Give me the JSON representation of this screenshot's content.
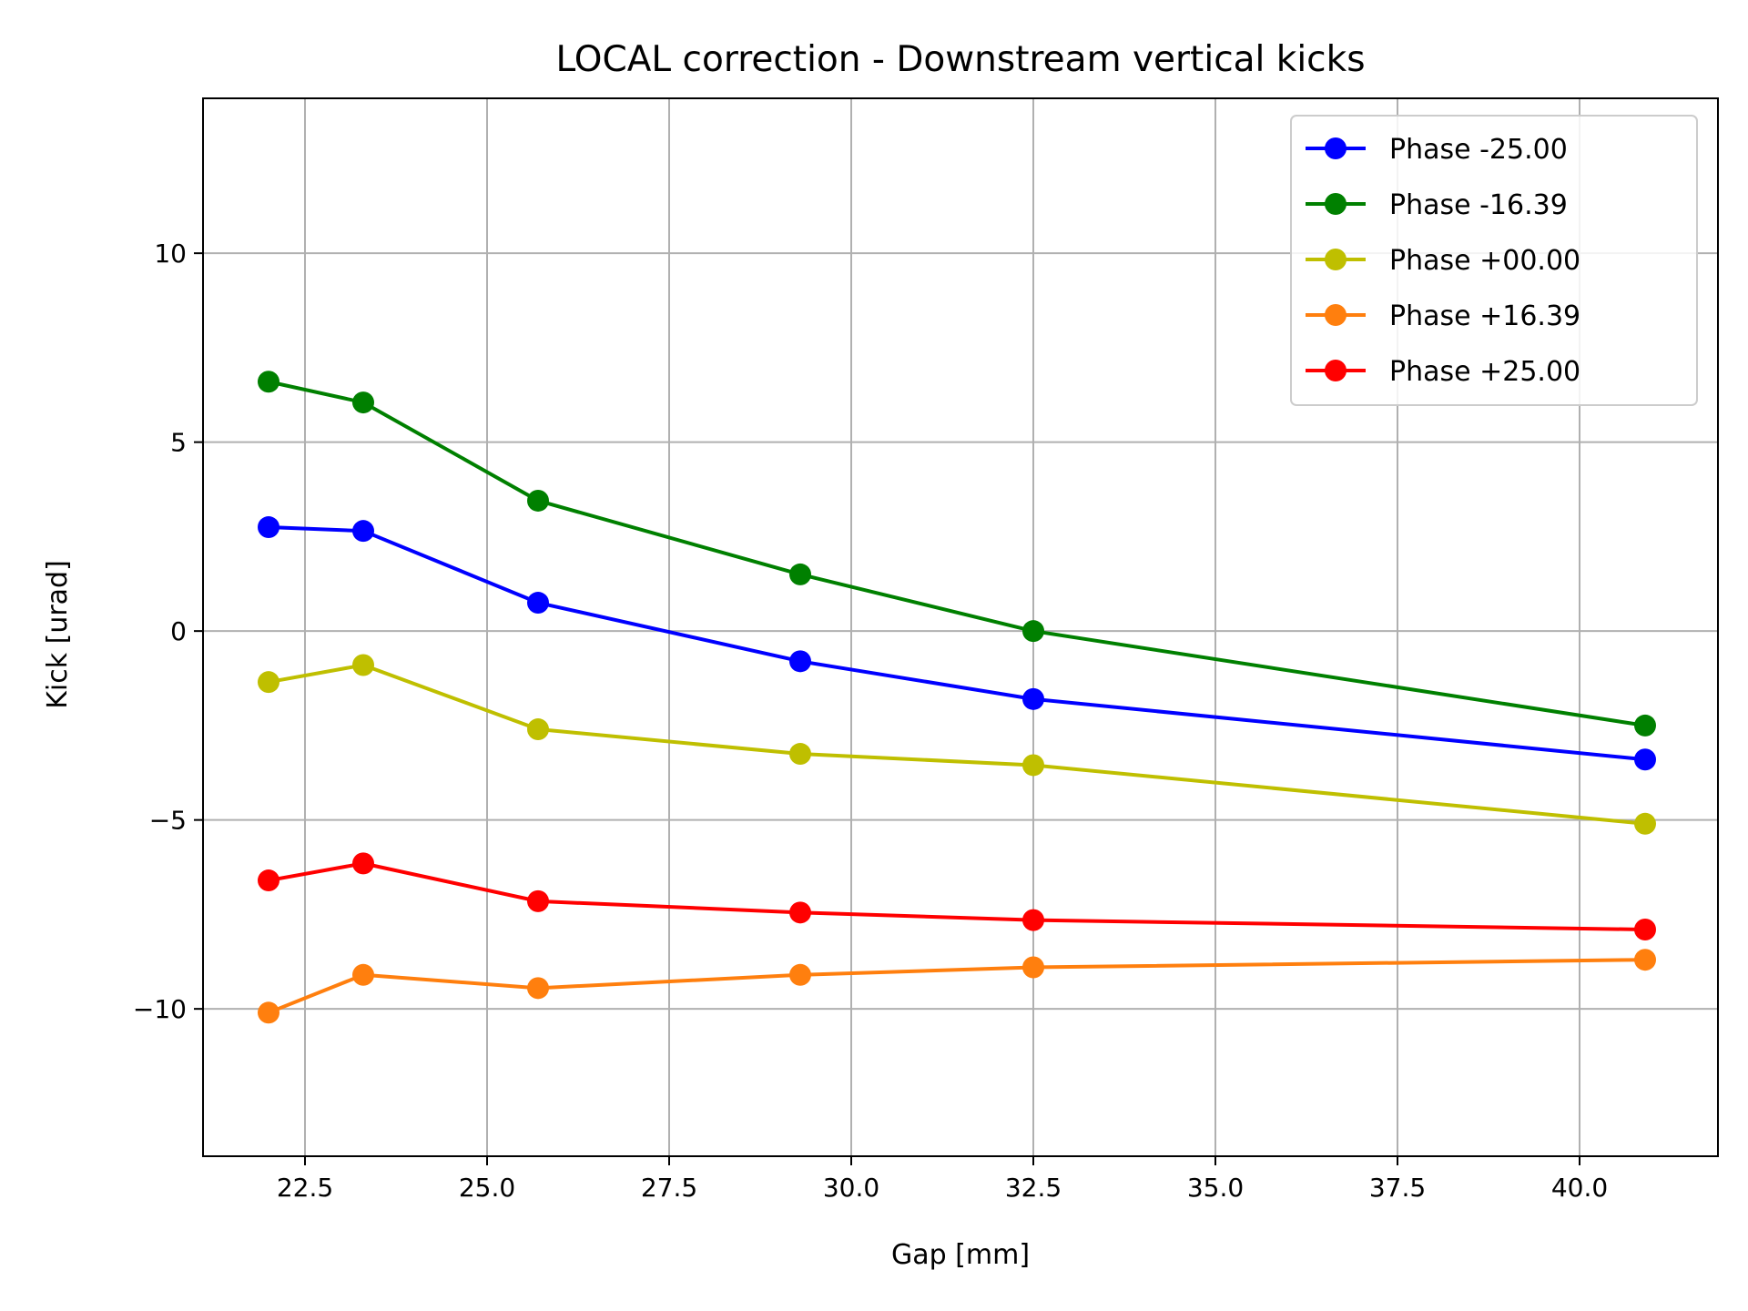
{
  "chart_data": {
    "type": "line",
    "title": "LOCAL correction - Downstream vertical kicks",
    "xlabel": "Gap [mm]",
    "ylabel": "Kick [urad]",
    "xlim": [
      21.1,
      41.9
    ],
    "ylim": [
      -13.9,
      14.1
    ],
    "xticks": [
      22.5,
      25.0,
      27.5,
      30.0,
      32.5,
      35.0,
      37.5,
      40.0
    ],
    "xtick_labels": [
      "22.5",
      "25.0",
      "27.5",
      "30.0",
      "32.5",
      "35.0",
      "37.5",
      "40.0"
    ],
    "yticks": [
      -10,
      -5,
      0,
      5,
      10
    ],
    "ytick_labels": [
      "−10",
      "−5",
      "0",
      "5",
      "10"
    ],
    "grid": true,
    "legend_position": "top-right",
    "x": [
      22.0,
      23.3,
      25.7,
      29.3,
      32.5,
      40.9
    ],
    "series": [
      {
        "name": "Phase -25.00",
        "color": "#0000ff",
        "values": [
          2.75,
          2.65,
          0.75,
          -0.8,
          -1.8,
          -3.4
        ]
      },
      {
        "name": "Phase -16.39",
        "color": "#008000",
        "values": [
          6.6,
          6.05,
          3.45,
          1.5,
          0.0,
          -2.5
        ]
      },
      {
        "name": "Phase +00.00",
        "color": "#bfbf00",
        "values": [
          -1.35,
          -0.9,
          -2.6,
          -3.25,
          -3.55,
          -5.1
        ]
      },
      {
        "name": "Phase +16.39",
        "color": "#ff7f0e",
        "values": [
          -10.1,
          -9.1,
          -9.45,
          -9.1,
          -8.9,
          -8.7
        ]
      },
      {
        "name": "Phase +25.00",
        "color": "#ff0000",
        "values": [
          -6.6,
          -6.15,
          -7.15,
          -7.45,
          -7.65,
          -7.9
        ]
      }
    ]
  }
}
